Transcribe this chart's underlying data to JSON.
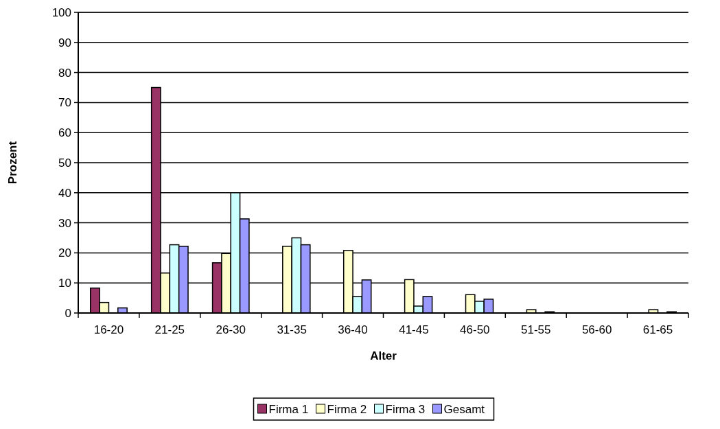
{
  "chart_data": {
    "type": "bar",
    "xlabel": "Alter",
    "ylabel": "Prozent",
    "categories": [
      "16-20",
      "21-25",
      "26-30",
      "31-35",
      "36-40",
      "41-45",
      "46-50",
      "51-55",
      "56-60",
      "61-65"
    ],
    "series": [
      {
        "name": "Firma 1",
        "color": "#993366",
        "values": [
          8.3,
          75,
          16.7,
          0,
          0,
          0,
          0,
          0,
          0,
          0
        ]
      },
      {
        "name": "Firma 2",
        "color": "#ffffcc",
        "values": [
          3.5,
          13.3,
          19.8,
          22.2,
          20.8,
          11.1,
          6.1,
          1.1,
          0,
          1.1
        ]
      },
      {
        "name": "Firma 3",
        "color": "#ccffff",
        "values": [
          0,
          22.7,
          40,
          25,
          5.5,
          2.3,
          3.9,
          0,
          0,
          0
        ]
      },
      {
        "name": "Gesamt",
        "color": "#9999ff",
        "values": [
          1.7,
          22.2,
          31.3,
          22.7,
          11,
          5.5,
          4.6,
          0.4,
          0,
          0.4
        ]
      }
    ],
    "ylim": [
      0,
      100
    ],
    "yticks": [
      0,
      10,
      20,
      30,
      40,
      50,
      60,
      70,
      80,
      90,
      100
    ],
    "grid": "y",
    "legend": "bottom"
  }
}
